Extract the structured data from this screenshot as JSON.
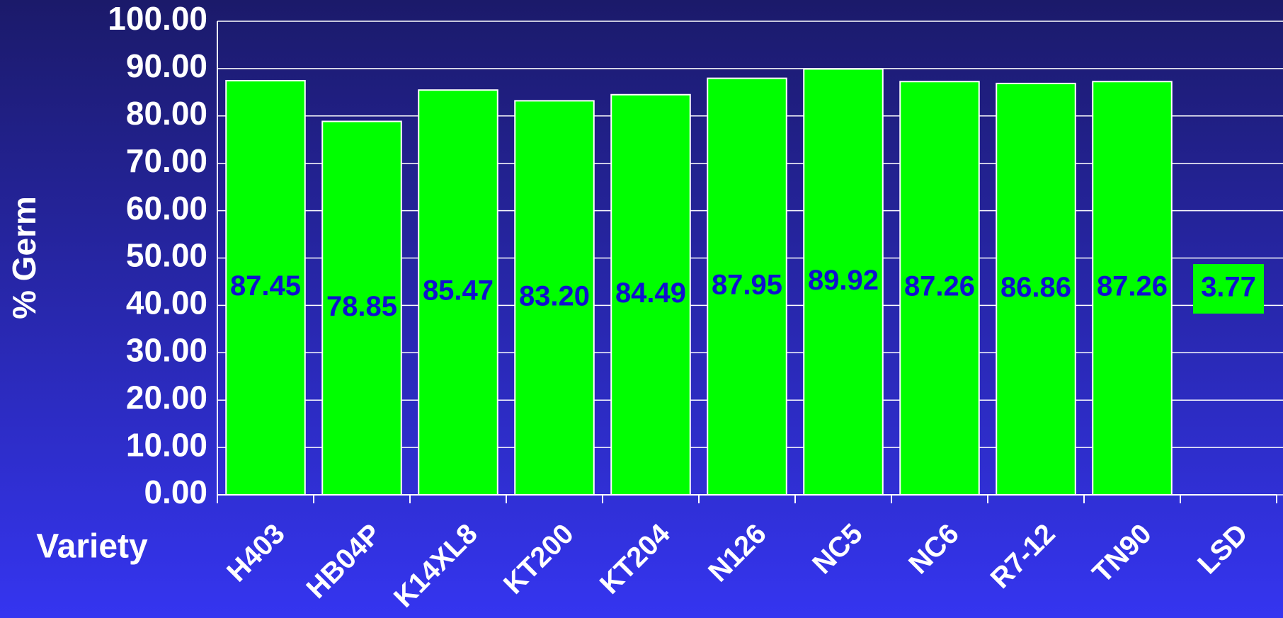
{
  "chart_data": {
    "type": "bar",
    "y_axis_label": "% Germ",
    "x_axis_label": "Variety",
    "categories": [
      "H403",
      "HB04P",
      "K14XL8",
      "KT200",
      "KT204",
      "N126",
      "NC5",
      "NC6",
      "R7-12",
      "TN90"
    ],
    "values": [
      87.45,
      78.85,
      85.47,
      83.2,
      84.49,
      87.95,
      89.92,
      87.26,
      86.86,
      87.26
    ],
    "value_labels": [
      "87.45",
      "78.85",
      "85.47",
      "83.20",
      "84.49",
      "87.95",
      "89.92",
      "87.26",
      "86.86",
      "87.26"
    ],
    "lsd": {
      "label": "LSD",
      "value": 3.77
    },
    "color": "#00ff00",
    "ylim": [
      0,
      100
    ],
    "yticks": [
      {
        "value": 0,
        "label": "0.00"
      },
      {
        "value": 10,
        "label": "10.00"
      },
      {
        "value": 20,
        "label": "20.00"
      },
      {
        "value": 30,
        "label": "30.00"
      },
      {
        "value": 40,
        "label": "40.00"
      },
      {
        "value": 50,
        "label": "50.00"
      },
      {
        "value": 60,
        "label": "60.00"
      },
      {
        "value": 70,
        "label": "70.00"
      },
      {
        "value": 80,
        "label": "80.00"
      },
      {
        "value": 90,
        "label": "90.00"
      },
      {
        "value": 100,
        "label": "100.00"
      }
    ],
    "grid": true
  }
}
